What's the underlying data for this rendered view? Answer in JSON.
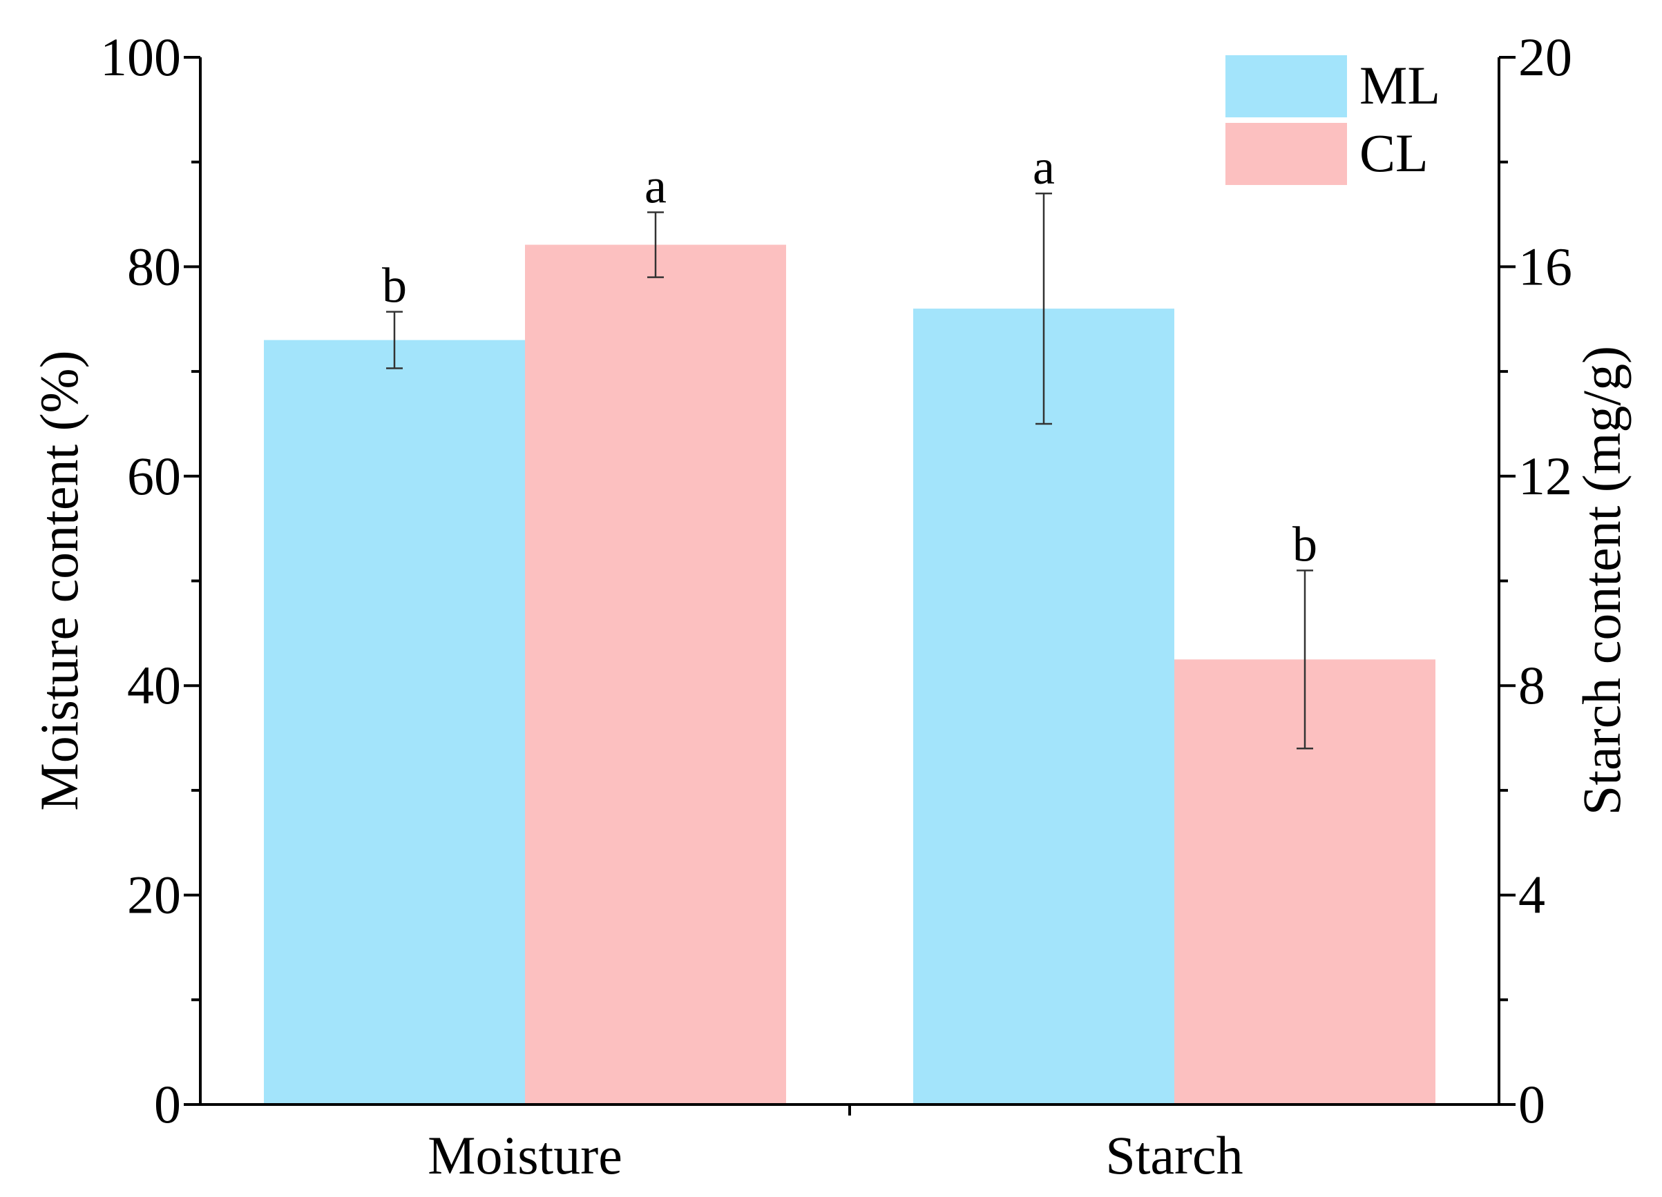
{
  "chart_data": {
    "type": "bar",
    "title": "",
    "categories": [
      "Moisture",
      "Starch"
    ],
    "series": [
      {
        "name": "ML",
        "color": "#a3e4fb",
        "values": [
          73.0,
          15.2
        ],
        "errors": [
          2.7,
          2.2
        ],
        "significance": [
          "b",
          "a"
        ],
        "axis": [
          "left",
          "right"
        ]
      },
      {
        "name": "CL",
        "color": "#fcc0c0",
        "values": [
          82.1,
          8.5
        ],
        "errors": [
          3.1,
          1.7
        ],
        "significance": [
          "a",
          "b"
        ],
        "axis": [
          "left",
          "right"
        ]
      }
    ],
    "left_axis": {
      "label": "Moisture content (%)",
      "ylim": [
        0,
        100
      ],
      "ticks": [
        "0",
        "20",
        "40",
        "60",
        "80",
        "100"
      ]
    },
    "right_axis": {
      "label": "Starch content (mg/g)",
      "ylim": [
        0,
        20
      ],
      "ticks": [
        "0",
        "4",
        "8",
        "12",
        "16",
        "20"
      ]
    },
    "legend": {
      "position": "top-right",
      "entries": [
        "ML",
        "CL"
      ]
    }
  }
}
